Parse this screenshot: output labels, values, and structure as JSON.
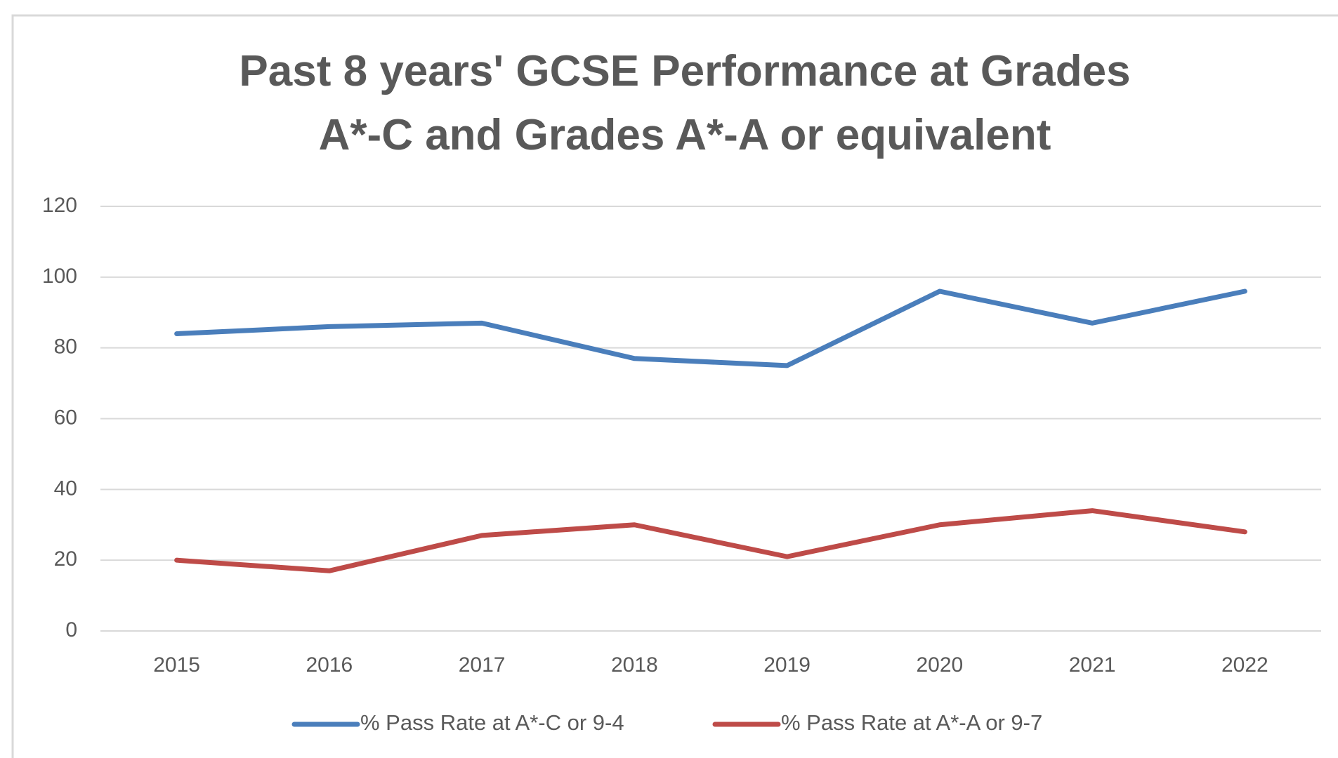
{
  "chart_data": {
    "type": "line",
    "title": [
      "Past 8 years' GCSE Performance at Grades",
      "A*-C and Grades A*-A or equivalent"
    ],
    "categories": [
      "2015",
      "2016",
      "2017",
      "2018",
      "2019",
      "2020",
      "2021",
      "2022"
    ],
    "series": [
      {
        "name": "% Pass Rate at A*-C or 9-4",
        "color": "#4a7ebb",
        "values": [
          84,
          86,
          87,
          77,
          75,
          96,
          87,
          96
        ]
      },
      {
        "name": "% Pass Rate at A*-A or 9-7",
        "color": "#be4b48",
        "values": [
          20,
          17,
          27,
          30,
          21,
          30,
          34,
          28
        ]
      }
    ],
    "ylim": [
      0,
      120
    ],
    "yticks": [
      0,
      20,
      40,
      60,
      80,
      100,
      120
    ],
    "grid": true,
    "legend": "bottom"
  }
}
